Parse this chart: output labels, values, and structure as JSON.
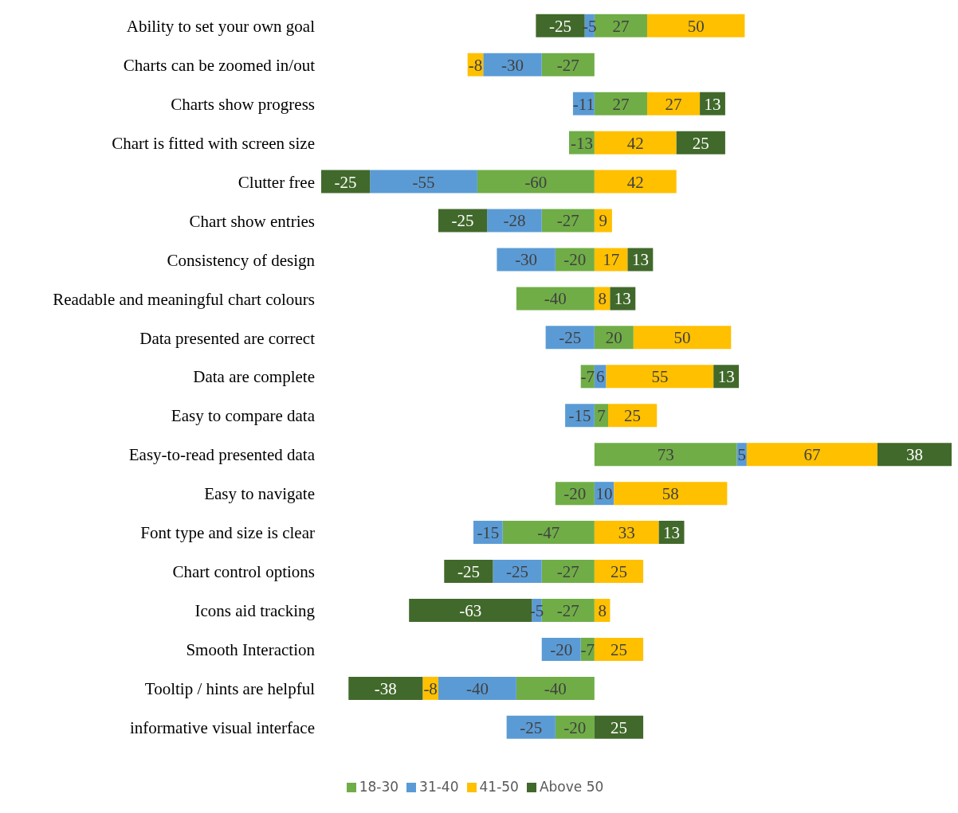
{
  "chart_data": {
    "type": "bar",
    "orientation": "horizontal",
    "stacked": true,
    "data_labels": true,
    "legend": "bottom",
    "categories": [
      "Ability to set your own goal",
      "Charts can be zoomed in/out",
      "Charts show progress",
      "Chart is fitted with  screen size",
      "Clutter free",
      "Chart show entries",
      "Consistency of design",
      "Readable and meaningful chart colours",
      "Data presented are correct",
      "Data are complete",
      "Easy to compare data",
      "Easy-to-read presented data",
      "Easy to navigate",
      "Font type and size is clear",
      "Chart control options",
      "Icons aid tracking",
      "Smooth Interaction",
      "Tooltip / hints are helpful",
      "informative visual interface"
    ],
    "series": [
      {
        "name": "18-30",
        "color": "#70ad47",
        "values": [
          27,
          -27,
          27,
          -13,
          -60,
          -27,
          -20,
          -40,
          20,
          -7,
          7,
          73,
          -20,
          -47,
          -27,
          -27,
          -7,
          -40,
          -20
        ]
      },
      {
        "name": "31-40",
        "color": "#5b9bd5",
        "values": [
          -5,
          -30,
          -11,
          null,
          -55,
          -28,
          -30,
          null,
          -25,
          6,
          -15,
          5,
          10,
          -15,
          -25,
          -5,
          -20,
          -40,
          -25
        ]
      },
      {
        "name": "41-50",
        "color": "#ffc000",
        "values": [
          50,
          -8,
          27,
          42,
          42,
          9,
          17,
          8,
          50,
          55,
          25,
          67,
          58,
          33,
          25,
          8,
          25,
          -8,
          null
        ]
      },
      {
        "name": "Above 50",
        "color": "#41692b",
        "values": [
          -25,
          null,
          13,
          25,
          -25,
          -25,
          13,
          13,
          null,
          13,
          null,
          38,
          null,
          13,
          -25,
          -63,
          null,
          -38,
          25
        ]
      }
    ]
  }
}
